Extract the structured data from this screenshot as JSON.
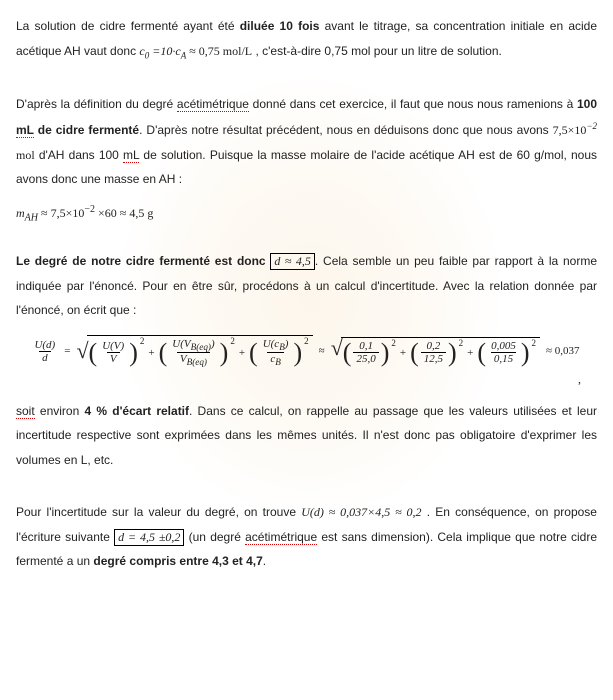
{
  "p1": {
    "t1": "La solution de cidre fermenté ayant été ",
    "b1": "diluée 10 fois",
    "t2": " avant le titrage, sa concentration initiale en acide acétique AH vaut donc ",
    "f1": "c",
    "f1sub": "0",
    "f2": " =10·c",
    "f2sub": "A",
    "f3": " ≈ 0,75 mol/L",
    "t3": " , c'est-à-dire 0,75 mol pour un litre de solution."
  },
  "p2": {
    "t1": "D'après la définition du degré ",
    "d1": "acétimétrique",
    "t2": " donné dans cet exercice, il faut que nous nous ramenions à ",
    "b1": "100 ",
    "d2": "mL",
    "b2": " de cidre fermenté",
    "t3": ". D'après notre résultat précédent, nous en déduisons donc que nous avons ",
    "f1": "7,5×10",
    "f1sup": "−2",
    "f2": " mol",
    "t4": " d'AH dans 100 ",
    "d3": "mL",
    "t5": " de solution. Puisque la masse molaire de l'acide acétique AH est de 60 g/mol, nous avons donc une masse en AH :"
  },
  "eq1": {
    "m": "m",
    "sub": "AH",
    "rest": " ≈ 7,5×10",
    "sup": "−2",
    "end": " ×60 ≈ 4,5 g"
  },
  "p3": {
    "b1": "Le degré de notre cidre fermenté est donc ",
    "box": "d ≈ 4,5",
    "t1": ". Cela semble un peu faible par rapport à la norme indiquée par l'énoncé. Pour en être sûr, procédons à un calcul d'incertitude. Avec la relation donnée par l'énoncé, on écrit que :"
  },
  "bigeq": {
    "lhs_num": "U(d)",
    "lhs_den": "d",
    "t1_num": "U(V)",
    "t1_den": "V",
    "t2_num_a": "U",
    "t2_num_b": "V",
    "t2_num_sub": "B(eq)",
    "t2_den_a": "V",
    "t2_den_sub": "B(eq)",
    "t3_num_a": "U(c",
    "t3_num_sub": "B",
    "t3_num_b": ")",
    "t3_den_a": "c",
    "t3_den_sub": "B",
    "n1_num": "0,1",
    "n1_den": "25,0",
    "n2_num": "0,2",
    "n2_den": "12,5",
    "n3_num": "0,005",
    "n3_den": "0,15",
    "approx": "≈ 0,037",
    "comma": ","
  },
  "p4": {
    "d1": "soit",
    "t1": " environ ",
    "b1": "4 % d'écart relatif",
    "t2": ". Dans ce calcul, on rappelle au passage que les valeurs utilisées et leur incertitude respective sont exprimées dans les mêmes unités. Il n'est donc pas obligatoire d'exprimer les volumes en L, etc."
  },
  "p5": {
    "t1": "Pour l'incertitude sur la valeur du degré, on trouve ",
    "f1": "U(d) ≈ 0,037×4,5 ≈ 0,2",
    "t2": " . En conséquence, on propose l'écriture suivante ",
    "box": "d = 4,5 ±0,2",
    "t3": " (un degré ",
    "d1": "acétimétrique",
    "t4": " est sans dimension). Cela implique que notre cidre fermenté a un ",
    "b1": "degré compris entre 4,3 et 4,7",
    "t5": "."
  }
}
